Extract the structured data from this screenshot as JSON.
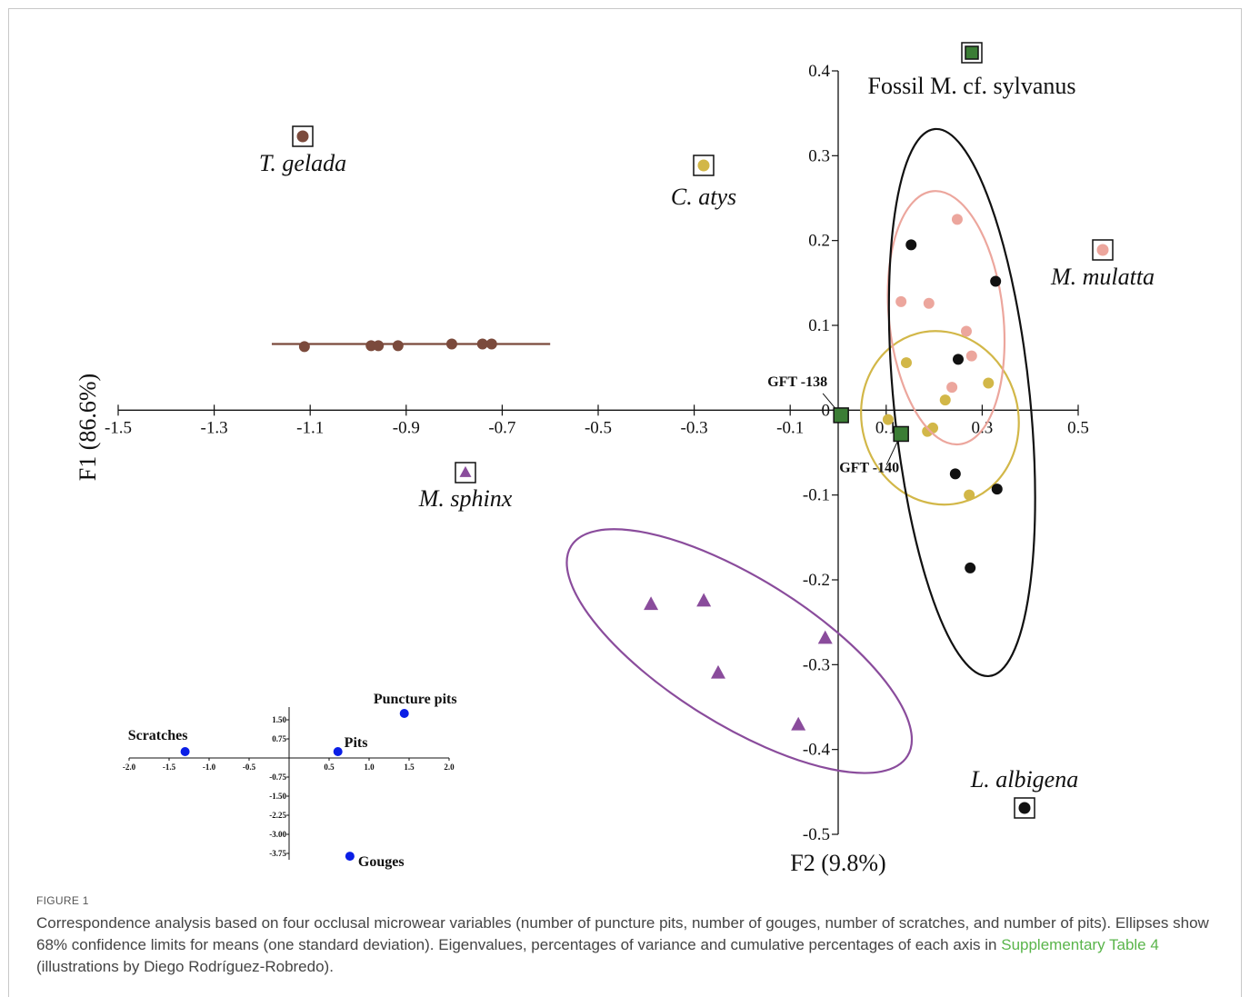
{
  "chart_data": [
    {
      "type": "scatter",
      "xlabel": "F1 (86.6%)",
      "ylabel": "F2 (9.8%)",
      "xlim": [
        -1.5,
        0.5
      ],
      "ylim": [
        -0.5,
        0.4
      ],
      "xticks": [
        -1.5,
        -1.3,
        -1.1,
        -0.9,
        -0.7,
        -0.5,
        -0.3,
        -0.1,
        0.1,
        0.3,
        0.5
      ],
      "yticks": [
        0.4,
        0.3,
        0.2,
        0.1,
        0,
        -0.1,
        -0.2,
        -0.3,
        -0.4,
        -0.5
      ],
      "series": [
        {
          "name": "T. gelada",
          "color": "#7b4a3c",
          "marker": "circle",
          "x": [
            -1.112,
            -0.973,
            -0.958,
            -0.917,
            -0.805,
            -0.741,
            -0.722
          ],
          "y": [
            0.075,
            0.076,
            0.076,
            0.076,
            0.078,
            0.078,
            0.078
          ],
          "ellipse": {
            "cx": -0.89,
            "cy": 0.078,
            "rx": 0.29,
            "ry": 0,
            "tilt": 0
          }
        },
        {
          "name": "C. atys",
          "color": "#d2b748",
          "marker": "circle",
          "x": [
            0.142,
            0.313,
            0.223,
            0.104,
            0.197,
            0.186,
            0.273
          ],
          "y": [
            0.056,
            0.032,
            0.012,
            -0.011,
            -0.021,
            -0.025,
            -0.1
          ],
          "ellipse": {
            "cx": 0.212,
            "cy": -0.009,
            "rx": 0.163,
            "ry": 0.103,
            "tilt": -15
          }
        },
        {
          "name": "M. sphinx",
          "color": "#8a4c9c",
          "marker": "triangle",
          "x": [
            -0.39,
            -0.28,
            -0.25,
            -0.027,
            -0.083
          ],
          "y": [
            -0.229,
            -0.225,
            -0.31,
            -0.269,
            -0.371
          ],
          "ellipse": {
            "cx": -0.206,
            "cy": -0.284,
            "rx": 0.413,
            "ry": 0.086,
            "tilt": 32
          }
        },
        {
          "name": "M. mulatta",
          "color": "#eca69d",
          "marker": "circle",
          "x": [
            0.248,
            0.131,
            0.189,
            0.267,
            0.278,
            0.237
          ],
          "y": [
            0.225,
            0.128,
            0.126,
            0.093,
            0.064,
            0.027
          ],
          "ellipse": {
            "cx": 0.225,
            "cy": 0.109,
            "rx": 0.119,
            "ry": 0.15,
            "tilt": -6
          }
        },
        {
          "name": "L. albigena",
          "color": "#111111",
          "marker": "circle",
          "x": [
            0.152,
            0.328,
            0.25,
            0.244,
            0.331,
            0.275
          ],
          "y": [
            0.195,
            0.152,
            0.06,
            -0.075,
            -0.093,
            -0.186
          ],
          "ellipse": {
            "cx": 0.258,
            "cy": 0.009,
            "rx": 0.142,
            "ry": 0.324,
            "tilt": -5.7
          }
        },
        {
          "name": "Fossil M. cf. sylvanus",
          "color": "#3b7d35",
          "marker": "square",
          "x": [
            0.006,
            0.131
          ],
          "y": [
            -0.006,
            -0.028
          ],
          "point_labels": [
            "GFT -138",
            "GFT -140"
          ]
        }
      ]
    },
    {
      "type": "scatter",
      "xlim": [
        -2.0,
        2.0
      ],
      "ylim": [
        -4.0,
        2.0
      ],
      "xticks": [
        {
          "value": -2,
          "label": "-2.0"
        },
        -1.5,
        {
          "value": -1,
          "label": "-1.0"
        },
        -0.5,
        0.5,
        {
          "value": 1,
          "label": "1.0"
        },
        1.5,
        {
          "value": 2,
          "label": "2.0"
        }
      ],
      "yticks": [
        {
          "value": 1.5,
          "label": "1.50"
        },
        0.75,
        -0.75,
        {
          "value": -1.5,
          "label": "-1.50"
        },
        -2.25,
        {
          "value": -3,
          "label": "-3.00"
        },
        -3.75
      ],
      "series": [
        {
          "name": null,
          "color": "#0a1ee6",
          "labels": [
            "Puncture pits",
            "Pits",
            "Scratches",
            "Gouges"
          ],
          "x": [
            1.44,
            0.61,
            -1.3,
            0.76
          ],
          "y": [
            1.75,
            0.25,
            0.25,
            -3.86
          ]
        }
      ]
    }
  ],
  "caption": {
    "figure_label": "FIGURE 1",
    "text_before": "Correspondence analysis based on four occlusal microwear variables (number of puncture pits, number of gouges, number of scratches, and number of pits). Ellipses show 68% confidence limits for means (one standard deviation). Eigenvalues, percentages of variance and cumulative percentages of each axis in ",
    "link": "Supplementary Table 4",
    "text_after": " (illustrations by Diego Rodríguez-Robredo)."
  }
}
